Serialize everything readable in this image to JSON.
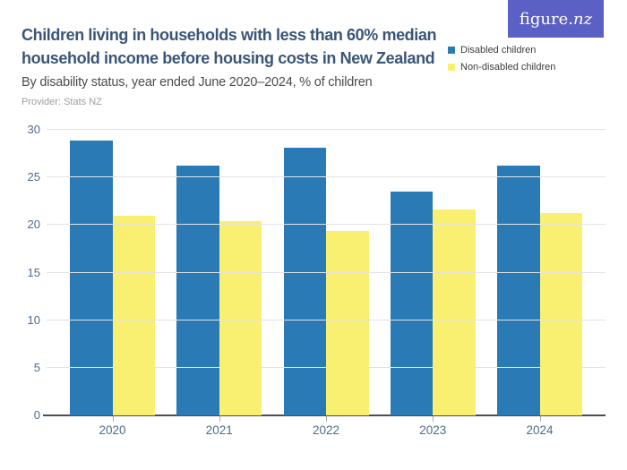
{
  "logo": {
    "text_main": "figure.",
    "text_accent": "nz",
    "background": "#5A60C4",
    "text_color": "#FFFFFF"
  },
  "chart_data": {
    "type": "bar",
    "title": "Children living in households with less than 60% median household income before housing costs in New Zealand",
    "subtitle": "By disability status, year ended June 2020–2024, % of children",
    "provider": "Provider: Stats NZ",
    "categories": [
      "2020",
      "2021",
      "2022",
      "2023",
      "2024"
    ],
    "series": [
      {
        "name": "Disabled children",
        "color": "#2A7AB6",
        "values": [
          28.9,
          26.2,
          28.1,
          23.5,
          26.2
        ]
      },
      {
        "name": "Non-disabled children",
        "color": "#F9F072",
        "values": [
          21.0,
          20.4,
          19.4,
          21.6,
          21.3
        ]
      }
    ],
    "ylabel": "% of children",
    "ylim": [
      0,
      30
    ],
    "yticks": [
      0,
      5,
      10,
      15,
      20,
      25,
      30
    ],
    "grid": true,
    "legend_position": "top-right",
    "colors": {
      "title": "#3A5578",
      "subtitle": "#4D4D4D",
      "provider": "#9E9E9E",
      "axis_labels": "#4D6A8C",
      "gridline": "#E3E3E3",
      "axis_line": "#4D4D4D"
    }
  }
}
